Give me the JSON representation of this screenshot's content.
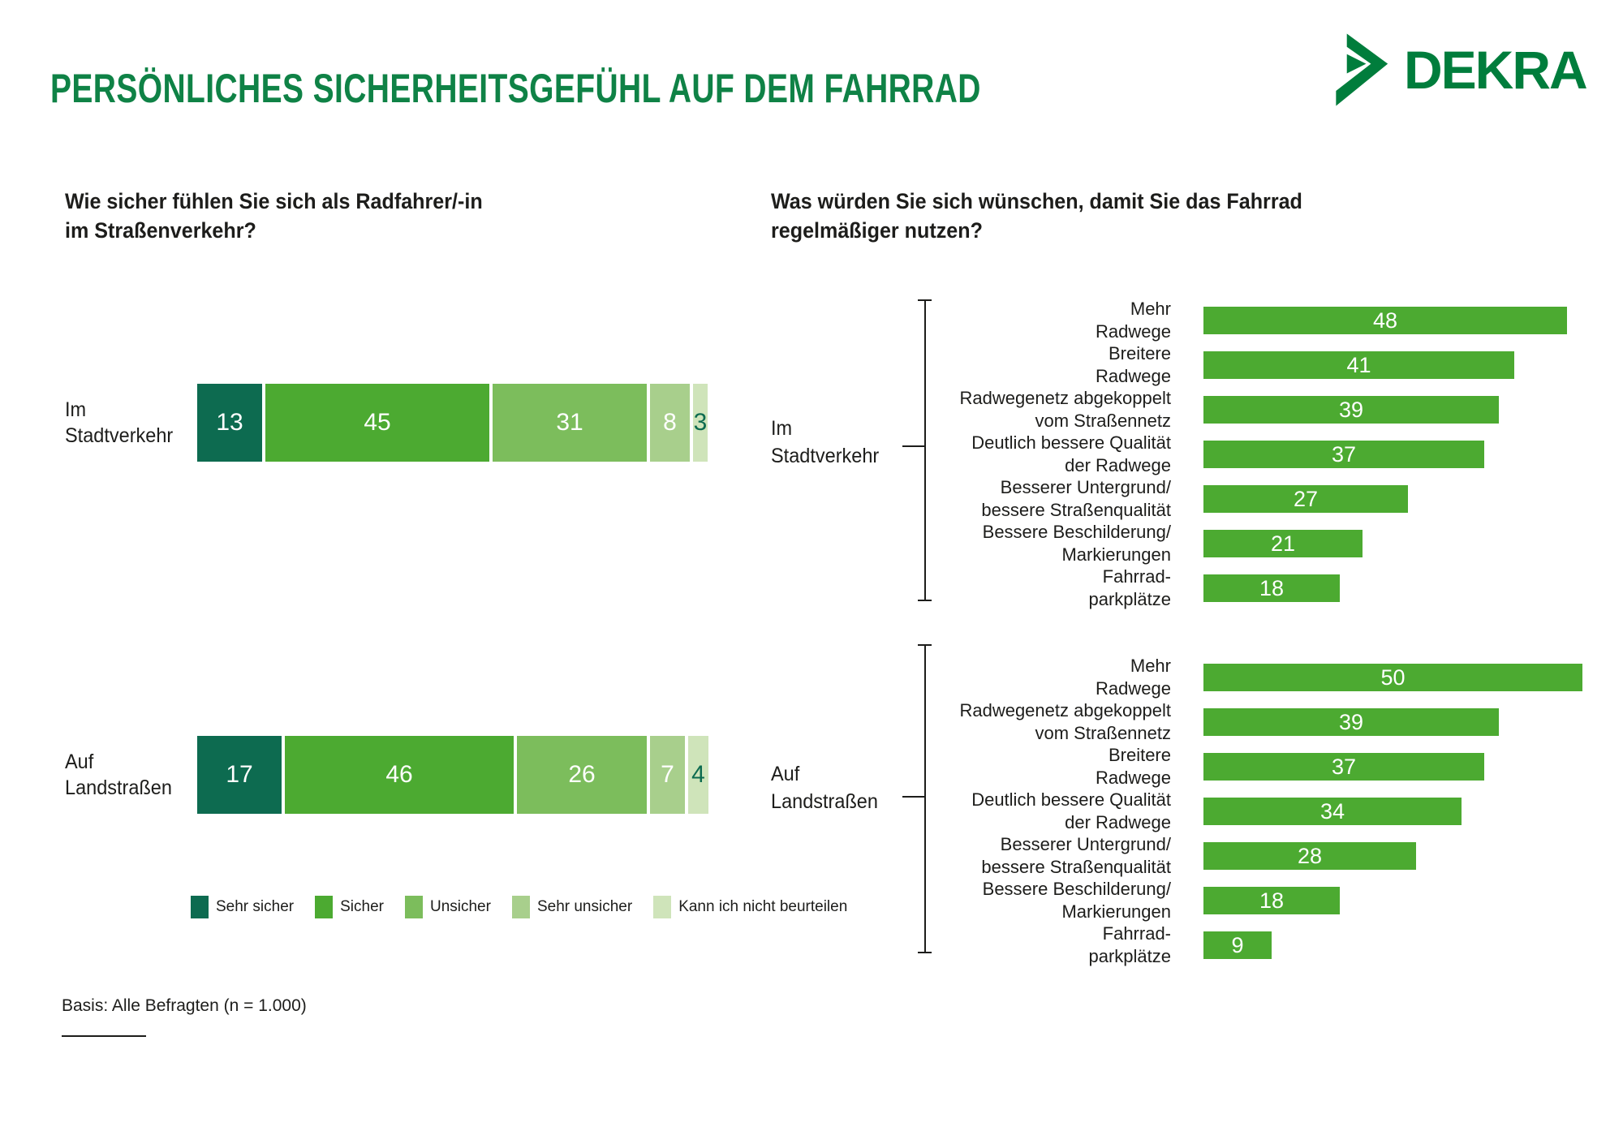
{
  "header": {
    "title": "PERSÖNLICHES SICHERHEITSGEFÜHL AUF DEM FAHRRAD",
    "logo_text": "DEKRA"
  },
  "footer": {
    "basis": "Basis: Alle Befragten (n = 1.000)"
  },
  "colors": {
    "title_green": "#0f8246",
    "logo_green": "#007d3c",
    "text_dark": "#1d1d1b",
    "bar_green": "#4caa31",
    "value_dark_green": "#0d6b50"
  },
  "chart_data": [
    {
      "id": "safety_stacked",
      "type": "bar",
      "variant": "stacked-horizontal",
      "title": "Wie sicher fühlen Sie sich als Radfahrer/-in\nim Straßenverkehr?",
      "unit": "percent",
      "xlim": [
        0,
        100
      ],
      "grid": false,
      "legend_position": "bottom",
      "categories": [
        "Im Stadtverkehr",
        "Auf Landstraßen"
      ],
      "series": [
        {
          "name": "Sehr sicher",
          "color": "#0d6b50",
          "label_color": "#ffffff",
          "values": [
            13,
            17
          ]
        },
        {
          "name": "Sicher",
          "color": "#4caa31",
          "label_color": "#ffffff",
          "values": [
            45,
            46
          ]
        },
        {
          "name": "Unsicher",
          "color": "#7cbd5c",
          "label_color": "#ffffff",
          "values": [
            31,
            26
          ]
        },
        {
          "name": "Sehr unsicher",
          "color": "#a8cf8c",
          "label_color": "#ffffff",
          "values": [
            8,
            7
          ]
        },
        {
          "name": "Kann ich nicht beurteilen",
          "color": "#cfe4ba",
          "label_color": "#0d6b50",
          "values": [
            3,
            4
          ]
        }
      ]
    },
    {
      "id": "wishes_grouped",
      "type": "bar",
      "variant": "horizontal",
      "title": "Was würden Sie sich wünschen, damit Sie das Fahrrad\nregelmäßiger nutzen?",
      "unit": "percent",
      "xlim": [
        0,
        50
      ],
      "grid": false,
      "bar_color": "#4caa31",
      "groups": [
        {
          "name": "Im Stadtverkehr",
          "items": [
            {
              "label": "Mehr\nRadwege",
              "value": 48
            },
            {
              "label": "Breitere\nRadwege",
              "value": 41
            },
            {
              "label": "Radwegenetz abgekoppelt\nvom Straßennetz",
              "value": 39
            },
            {
              "label": "Deutlich bessere Qualität\nder Radwege",
              "value": 37
            },
            {
              "label": "Besserer Untergrund/\nbessere Straßenqualität",
              "value": 27
            },
            {
              "label": "Bessere Beschilderung/\nMarkierungen",
              "value": 21
            },
            {
              "label": "Fahrrad-\nparkplätze",
              "value": 18
            }
          ]
        },
        {
          "name": "Auf Landstraßen",
          "items": [
            {
              "label": "Mehr\nRadwege",
              "value": 50
            },
            {
              "label": "Radwegenetz abgekoppelt\nvom Straßennetz",
              "value": 39
            },
            {
              "label": "Breitere\nRadwege",
              "value": 37
            },
            {
              "label": "Deutlich bessere Qualität\nder Radwege",
              "value": 34
            },
            {
              "label": "Besserer Untergrund/\nbessere Straßenqualität",
              "value": 28
            },
            {
              "label": "Bessere Beschilderung/\nMarkierungen",
              "value": 18
            },
            {
              "label": "Fahrrad-\nparkplätze",
              "value": 9
            }
          ]
        }
      ]
    }
  ]
}
